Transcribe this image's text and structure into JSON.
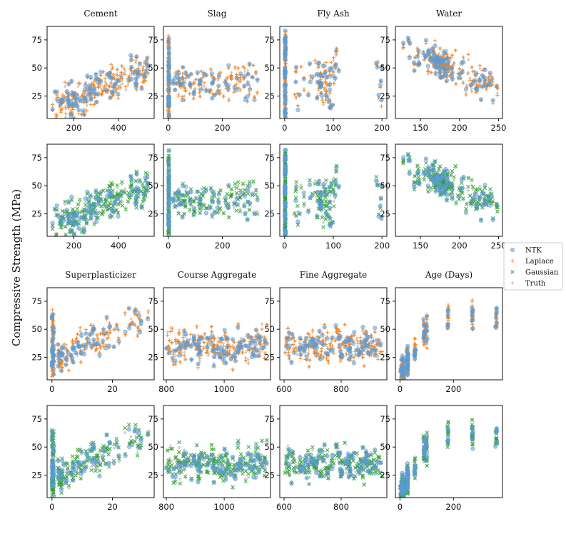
{
  "figure": {
    "ylabel": "Compressive Strength (MPa)"
  },
  "legend": {
    "placement": "right",
    "entries": [
      {
        "label": "NTK",
        "color": "#5b9bd5",
        "marker": "circle"
      },
      {
        "label": "Laplace",
        "color": "#ff7f0e",
        "marker": "plus"
      },
      {
        "label": "Gaussian",
        "color": "#2ca02c",
        "marker": "x"
      },
      {
        "label": "Truth",
        "color": "#a0a0a0",
        "marker": "diamond"
      }
    ]
  },
  "chart_data": [
    {
      "type": "scatter",
      "title": "Cement",
      "row": 0,
      "col": 0,
      "xlim": [
        80,
        560
      ],
      "ylim": [
        5,
        87
      ],
      "xticks": [
        200,
        400
      ],
      "yticks": [
        25,
        50,
        75
      ],
      "series": [
        "NTK",
        "Laplace",
        "Truth"
      ]
    },
    {
      "type": "scatter",
      "title": "Slag",
      "row": 0,
      "col": 1,
      "xlim": [
        -18,
        378
      ],
      "ylim": [
        5,
        87
      ],
      "xticks": [
        0,
        200
      ],
      "yticks": [
        25,
        50,
        75
      ],
      "series": [
        "NTK",
        "Laplace",
        "Truth"
      ]
    },
    {
      "type": "scatter",
      "title": "Fly Ash",
      "row": 0,
      "col": 2,
      "xlim": [
        -10,
        210
      ],
      "ylim": [
        5,
        87
      ],
      "xticks": [
        0,
        100,
        200
      ],
      "yticks": [
        25,
        50,
        75
      ],
      "series": [
        "NTK",
        "Laplace",
        "Truth"
      ]
    },
    {
      "type": "scatter",
      "title": "Water",
      "row": 0,
      "col": 3,
      "xlim": [
        118,
        255
      ],
      "ylim": [
        5,
        87
      ],
      "xticks": [
        150,
        200,
        250
      ],
      "yticks": [
        25,
        50,
        75
      ],
      "series": [
        "NTK",
        "Laplace",
        "Truth"
      ]
    },
    {
      "type": "scatter",
      "title": "",
      "row": 1,
      "col": 0,
      "xlim": [
        80,
        560
      ],
      "ylim": [
        5,
        87
      ],
      "xticks": [
        200,
        400
      ],
      "yticks": [
        25,
        50,
        75
      ],
      "series": [
        "NTK",
        "Gaussian",
        "Truth"
      ]
    },
    {
      "type": "scatter",
      "title": "",
      "row": 1,
      "col": 1,
      "xlim": [
        -18,
        378
      ],
      "ylim": [
        5,
        87
      ],
      "xticks": [
        0,
        200
      ],
      "yticks": [
        25,
        50,
        75
      ],
      "series": [
        "NTK",
        "Gaussian",
        "Truth"
      ]
    },
    {
      "type": "scatter",
      "title": "",
      "row": 1,
      "col": 2,
      "xlim": [
        -10,
        210
      ],
      "ylim": [
        5,
        87
      ],
      "xticks": [
        0,
        100,
        200
      ],
      "yticks": [
        25,
        50,
        75
      ],
      "series": [
        "NTK",
        "Gaussian",
        "Truth"
      ]
    },
    {
      "type": "scatter",
      "title": "",
      "row": 1,
      "col": 3,
      "xlim": [
        118,
        255
      ],
      "ylim": [
        5,
        87
      ],
      "xticks": [
        150,
        200,
        250
      ],
      "yticks": [
        25,
        50,
        75
      ],
      "series": [
        "NTK",
        "Gaussian",
        "Truth"
      ]
    },
    {
      "type": "scatter",
      "title": "Superplasticizer",
      "row": 2,
      "col": 0,
      "xlim": [
        -1.6,
        33.8
      ],
      "ylim": [
        5,
        87
      ],
      "xticks": [
        0,
        20
      ],
      "yticks": [
        25,
        50,
        75
      ],
      "series": [
        "NTK",
        "Laplace",
        "Truth"
      ]
    },
    {
      "type": "scatter",
      "title": "Course Aggregate",
      "row": 2,
      "col": 1,
      "xlim": [
        790,
        1160
      ],
      "ylim": [
        5,
        87
      ],
      "xticks": [
        800,
        1000
      ],
      "yticks": [
        25,
        50,
        75
      ],
      "series": [
        "NTK",
        "Laplace",
        "Truth"
      ]
    },
    {
      "type": "scatter",
      "title": "Fine Aggregate",
      "row": 2,
      "col": 2,
      "xlim": [
        585,
        960
      ],
      "ylim": [
        5,
        87
      ],
      "xticks": [
        600,
        800
      ],
      "yticks": [
        25,
        50,
        75
      ],
      "series": [
        "NTK",
        "Laplace",
        "Truth"
      ]
    },
    {
      "type": "scatter",
      "title": "Age (Days)",
      "row": 2,
      "col": 3,
      "xlim": [
        -17,
        383
      ],
      "ylim": [
        5,
        87
      ],
      "xticks": [
        0,
        200
      ],
      "yticks": [
        25,
        50,
        75
      ],
      "series": [
        "NTK",
        "Laplace",
        "Truth"
      ]
    },
    {
      "type": "scatter",
      "title": "",
      "row": 3,
      "col": 0,
      "xlim": [
        -1.6,
        33.8
      ],
      "ylim": [
        5,
        87
      ],
      "xticks": [
        0,
        20
      ],
      "yticks": [
        25,
        50,
        75
      ],
      "series": [
        "NTK",
        "Gaussian",
        "Truth"
      ]
    },
    {
      "type": "scatter",
      "title": "",
      "row": 3,
      "col": 1,
      "xlim": [
        790,
        1160
      ],
      "ylim": [
        5,
        87
      ],
      "xticks": [
        800,
        1000
      ],
      "yticks": [
        25,
        50,
        75
      ],
      "series": [
        "NTK",
        "Gaussian",
        "Truth"
      ]
    },
    {
      "type": "scatter",
      "title": "",
      "row": 3,
      "col": 2,
      "xlim": [
        585,
        960
      ],
      "ylim": [
        5,
        87
      ],
      "xticks": [
        600,
        800
      ],
      "yticks": [
        25,
        50,
        75
      ],
      "series": [
        "NTK",
        "Gaussian",
        "Truth"
      ]
    },
    {
      "type": "scatter",
      "title": "",
      "row": 3,
      "col": 3,
      "xlim": [
        -17,
        383
      ],
      "ylim": [
        5,
        87
      ],
      "xticks": [
        0,
        200
      ],
      "yticks": [
        25,
        50,
        75
      ],
      "series": [
        "NTK",
        "Gaussian",
        "Truth"
      ]
    }
  ]
}
